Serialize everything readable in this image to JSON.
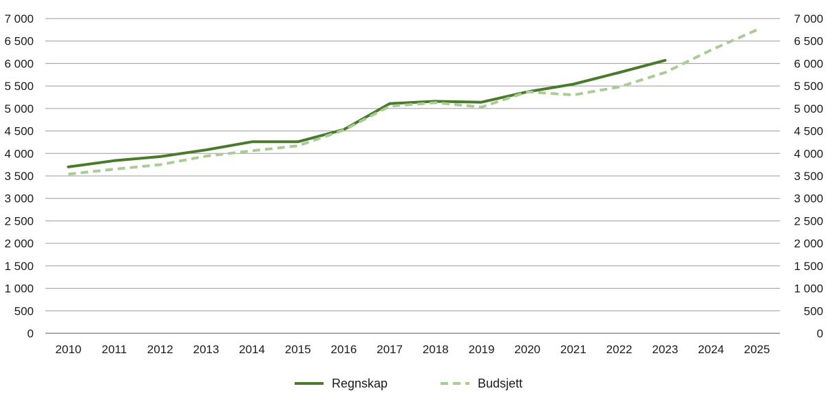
{
  "chart_data": {
    "type": "line",
    "x": [
      "2010",
      "2011",
      "2012",
      "2013",
      "2014",
      "2015",
      "2016",
      "2017",
      "2018",
      "2019",
      "2020",
      "2021",
      "2022",
      "2023",
      "2024",
      "2025"
    ],
    "ylim": [
      0,
      7000
    ],
    "yticks": [
      0,
      500,
      1000,
      1500,
      2000,
      2500,
      3000,
      3500,
      4000,
      4500,
      5000,
      5500,
      6000,
      6500,
      7000
    ],
    "ytick_labels": [
      "0",
      "500",
      "1 000",
      "1 500",
      "2 000",
      "2 500",
      "3 000",
      "3 500",
      "4 000",
      "4 500",
      "5 000",
      "5 500",
      "6 000",
      "6 500",
      "7 000"
    ],
    "grid": true,
    "legend_position": "bottom-center",
    "series": [
      {
        "name": "Regnskap",
        "style": "solid",
        "color": "#4a7a2c",
        "values": [
          3700,
          3840,
          3930,
          4080,
          4260,
          4260,
          4530,
          5110,
          5160,
          5140,
          5370,
          5540,
          5800,
          6070,
          null,
          null
        ]
      },
      {
        "name": "Budsjett",
        "style": "dashed",
        "color": "#a9cc94",
        "values": [
          3540,
          3650,
          3750,
          3940,
          4060,
          4170,
          4520,
          5050,
          5130,
          5030,
          5370,
          5300,
          5480,
          5800,
          6300,
          6750
        ]
      }
    ]
  }
}
